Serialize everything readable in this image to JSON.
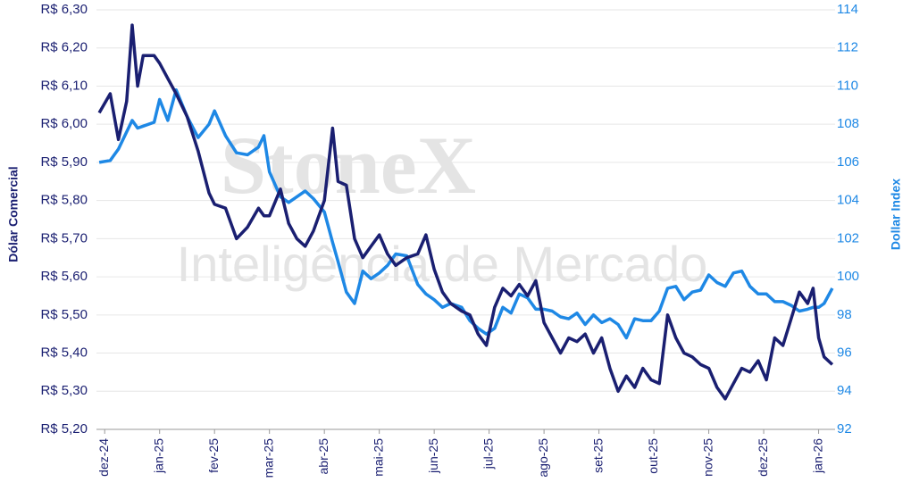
{
  "chart_data": {
    "type": "line",
    "watermark": [
      "StoneX",
      "Inteligência de Mercado"
    ],
    "ylabel": "Dólar Comercial",
    "y2label": "Dollar Index",
    "x": [
      -0.1,
      0.1,
      0.25,
      0.4,
      0.5,
      0.6,
      0.7,
      0.9,
      1.0,
      1.15,
      1.3,
      1.5,
      1.7,
      1.9,
      2.0,
      2.2,
      2.4,
      2.6,
      2.8,
      2.9,
      3.0,
      3.2,
      3.35,
      3.5,
      3.65,
      3.8,
      4.0,
      4.15,
      4.25,
      4.4,
      4.55,
      4.7,
      4.85,
      5.0,
      5.15,
      5.3,
      5.5,
      5.7,
      5.85,
      6.0,
      6.15,
      6.3,
      6.5,
      6.65,
      6.8,
      6.95,
      7.1,
      7.25,
      7.4,
      7.55,
      7.7,
      7.85,
      8.0,
      8.15,
      8.3,
      8.45,
      8.6,
      8.75,
      8.9,
      9.05,
      9.2,
      9.35,
      9.5,
      9.65,
      9.8,
      9.95,
      10.1,
      10.25,
      10.4,
      10.55,
      10.7,
      10.85,
      11.0,
      11.15,
      11.3,
      11.45,
      11.6,
      11.75,
      11.9,
      12.05,
      12.2,
      12.35,
      12.5,
      12.65,
      12.8,
      12.9,
      13.0,
      13.1,
      13.25
    ],
    "series": [
      {
        "color": "#1a1f71",
        "values": [
          6.03,
          6.08,
          5.96,
          6.06,
          6.26,
          6.1,
          6.18,
          6.18,
          6.16,
          6.12,
          6.08,
          6.02,
          5.93,
          5.82,
          5.79,
          5.78,
          5.7,
          5.73,
          5.78,
          5.76,
          5.76,
          5.83,
          5.74,
          5.7,
          5.68,
          5.72,
          5.8,
          5.99,
          5.85,
          5.84,
          5.7,
          5.65,
          5.68,
          5.71,
          5.66,
          5.63,
          5.65,
          5.66,
          5.71,
          5.62,
          5.56,
          5.53,
          5.51,
          5.5,
          5.45,
          5.42,
          5.52,
          5.57,
          5.55,
          5.58,
          5.55,
          5.59,
          5.48,
          5.44,
          5.4,
          5.44,
          5.43,
          5.45,
          5.4,
          5.44,
          5.36,
          5.3,
          5.34,
          5.31,
          5.36,
          5.33,
          5.32,
          5.5,
          5.44,
          5.4,
          5.39,
          5.37,
          5.36,
          5.31,
          5.28,
          5.32,
          5.36,
          5.35,
          5.38,
          5.33,
          5.44,
          5.42,
          5.49,
          5.56,
          5.53,
          5.57,
          5.44,
          5.39,
          5.37
        ]
      },
      {
        "color": "#1e88e5",
        "axis": "y2",
        "values": [
          106.0,
          106.1,
          106.7,
          107.6,
          108.2,
          107.8,
          107.9,
          108.1,
          109.3,
          108.2,
          109.8,
          108.4,
          107.3,
          108.0,
          108.7,
          107.4,
          106.5,
          106.4,
          106.8,
          107.4,
          105.5,
          104.2,
          103.9,
          104.2,
          104.5,
          104.1,
          103.4,
          101.8,
          100.8,
          99.2,
          98.6,
          100.3,
          99.9,
          100.2,
          100.6,
          101.2,
          101.1,
          99.6,
          99.1,
          98.8,
          98.4,
          98.6,
          98.4,
          97.7,
          97.3,
          97.0,
          97.3,
          98.4,
          98.1,
          99.1,
          98.9,
          98.3,
          98.3,
          98.2,
          97.9,
          97.8,
          98.1,
          97.5,
          98.0,
          97.6,
          97.8,
          97.5,
          96.8,
          97.8,
          97.7,
          97.7,
          98.2,
          99.4,
          99.5,
          98.8,
          99.2,
          99.3,
          100.1,
          99.7,
          99.5,
          100.2,
          100.3,
          99.5,
          99.1,
          99.1,
          98.7,
          98.7,
          98.5,
          98.2,
          98.3,
          98.4,
          98.4,
          98.6,
          99.4
        ]
      }
    ],
    "xlim": [
      -0.15,
      13.3
    ],
    "xticks": [
      {
        "value": 0,
        "label": "dez-24"
      },
      {
        "value": 1,
        "label": "jan-25"
      },
      {
        "value": 2,
        "label": "fev-25"
      },
      {
        "value": 3,
        "label": "mar-25"
      },
      {
        "value": 4,
        "label": "abr-25"
      },
      {
        "value": 5,
        "label": "mai-25"
      },
      {
        "value": 6,
        "label": "jun-25"
      },
      {
        "value": 7,
        "label": "jul-25"
      },
      {
        "value": 8,
        "label": "ago-25"
      },
      {
        "value": 9,
        "label": "set-25"
      },
      {
        "value": 10,
        "label": "out-25"
      },
      {
        "value": 11,
        "label": "nov-25"
      },
      {
        "value": 12,
        "label": "dez-25"
      },
      {
        "value": 13,
        "label": "jan-26"
      }
    ],
    "ylim": [
      5.2,
      6.3
    ],
    "yticks": [
      {
        "value": 5.2,
        "label": "R$ 5,20"
      },
      {
        "value": 5.3,
        "label": "R$ 5,30"
      },
      {
        "value": 5.4,
        "label": "R$ 5,40"
      },
      {
        "value": 5.5,
        "label": "R$ 5,50"
      },
      {
        "value": 5.6,
        "label": "R$ 5,60"
      },
      {
        "value": 5.7,
        "label": "R$ 5,70"
      },
      {
        "value": 5.8,
        "label": "R$ 5,80"
      },
      {
        "value": 5.9,
        "label": "R$ 5,90"
      },
      {
        "value": 6.0,
        "label": "R$ 6,00"
      },
      {
        "value": 6.1,
        "label": "R$ 6,10"
      },
      {
        "value": 6.2,
        "label": "R$ 6,20"
      },
      {
        "value": 6.3,
        "label": "R$ 6,30"
      }
    ],
    "y2lim": [
      92,
      114
    ],
    "y2ticks": [
      92,
      94,
      96,
      98,
      100,
      102,
      104,
      106,
      108,
      110,
      112,
      114
    ],
    "grid": true
  }
}
